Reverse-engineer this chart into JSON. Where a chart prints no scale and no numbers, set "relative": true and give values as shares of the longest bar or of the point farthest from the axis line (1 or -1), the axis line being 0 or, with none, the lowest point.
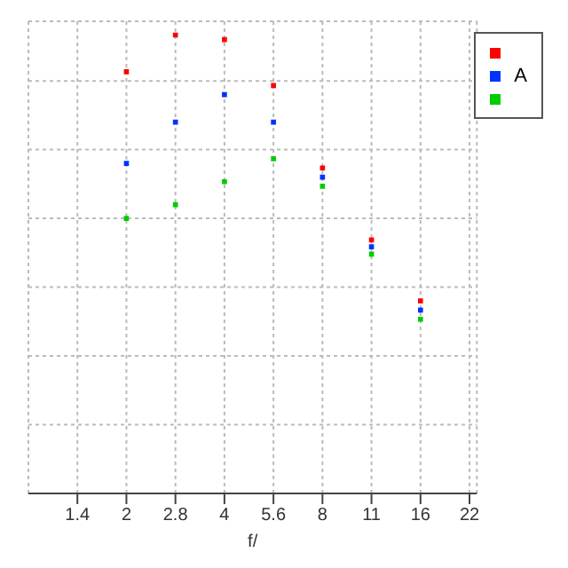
{
  "chart_data": {
    "type": "scatter",
    "relative": true,
    "xlabel": "f/",
    "categories": [
      "1.4",
      "2",
      "2.8",
      "4",
      "5.6",
      "8",
      "11",
      "16",
      "22"
    ],
    "series": [
      {
        "color": "#ff0000",
        "values": [
          null,
          0.92,
          1,
          0.99,
          0.89,
          0.71,
          0.553,
          0.42,
          null
        ]
      },
      {
        "name": "A",
        "color": "#0033ff",
        "values": [
          null,
          0.72,
          0.81,
          0.87,
          0.81,
          0.69,
          0.538,
          0.4,
          null
        ]
      },
      {
        "color": "#00cc00",
        "values": [
          null,
          0.6,
          0.63,
          0.68,
          0.73,
          0.67,
          0.522,
          0.38,
          null
        ]
      }
    ],
    "marker": "square",
    "grid": true,
    "legend": "top right"
  }
}
